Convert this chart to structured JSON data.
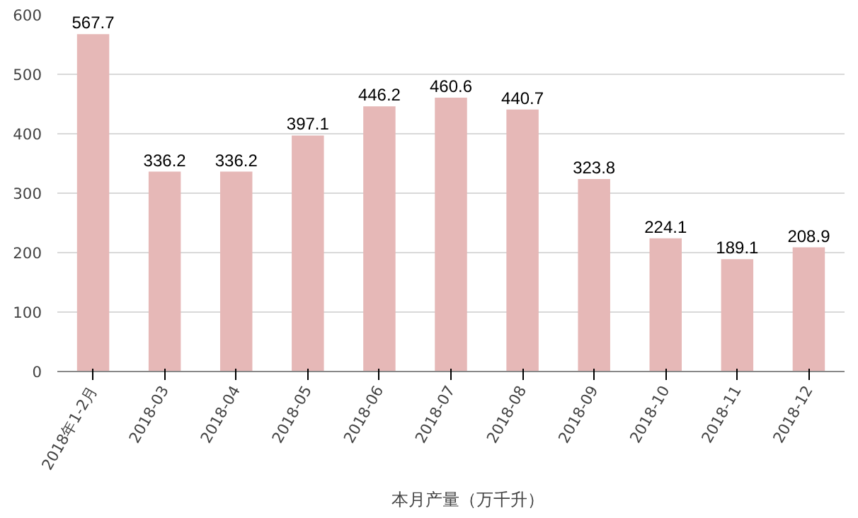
{
  "chart_data": {
    "type": "bar",
    "categories": [
      "2018年1-2月",
      "2018-03",
      "2018-04",
      "2018-05",
      "2018-06",
      "2018-07",
      "2018-08",
      "2018-09",
      "2018-10",
      "2018-11",
      "2018-12"
    ],
    "series": [
      {
        "name": "本月产量（万千升）",
        "color": "#e6b8b7",
        "values": [
          567.7,
          336.2,
          336.2,
          397.1,
          446.2,
          460.6,
          440.7,
          323.8,
          224.1,
          189.1,
          208.9
        ]
      }
    ],
    "ylim": [
      0,
      600
    ],
    "yticks": [
      0,
      100,
      200,
      300,
      400,
      500,
      600
    ],
    "grid": "y",
    "legend": "bottom",
    "data_labels": true
  }
}
